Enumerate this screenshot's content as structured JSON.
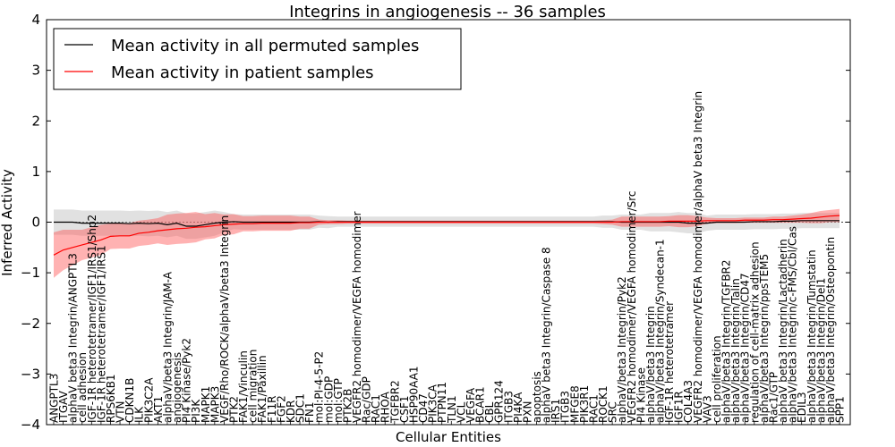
{
  "chart_data": {
    "type": "line",
    "title": "Integrins in angiogenesis -- 36 samples",
    "xlabel": "Cellular Entities",
    "ylabel": "Inferred Activity",
    "ylim": [
      -4,
      4
    ],
    "yticks": [
      "4",
      "3",
      "2",
      "1",
      "0",
      "−1",
      "−2",
      "−3",
      "−4"
    ],
    "ytick_values": [
      4,
      3,
      2,
      1,
      0,
      -1,
      -2,
      -3,
      -4
    ],
    "legend_position": "top-left",
    "categories": [
      "ANGPTL3",
      "ITGAV",
      "alphaV beta3 Integrin/ANGPTL3",
      "cell adhesion",
      "IGF-1R heterotetramer/IGF1/IRS1/Shp2",
      "IGF-1R heterotetramer/IGF1/IRS1",
      "RPS6KB1",
      "VTN",
      "CDKN1B",
      "ILK",
      "PIK3C2A",
      "AKT1",
      "alphaV/beta3 Integrin/JAM-A",
      "angiogenesis",
      "PI4 Kinase/Pyk2",
      "PI3K",
      "MAPK1",
      "MAPK3",
      "VEGF/Rho/ROCK/alphaV/beta3 Integrin",
      "PTK2",
      "FAK1/Vinculin",
      "cell migration",
      "FAK1/Paxillin",
      "F11R",
      "FGF2",
      "KDR",
      "SDC1",
      "FN1",
      "mol:PI-4-5-P2",
      "mol:GDP",
      "mol:GTP",
      "PTK2B",
      "VEGFR2 homodimer/VEGFA homodimer",
      "Rac/GDP",
      "RAC1",
      "RHOA",
      "TGFBR2",
      "CSF1",
      "HSP90AA1",
      "CD47",
      "PIK3CA",
      "PTPN11",
      "TLN1",
      "VCL",
      "VEGFA",
      "BCAR1",
      "CBL",
      "GPR124",
      "ITGB3",
      "PI4KA",
      "PXN",
      "apoptosis",
      "alphaV beta3 Integrin/Caspase 8",
      "IRS1",
      "ITGB3",
      "MFGE8",
      "PIK3R1",
      "RAC1",
      "ROCK1",
      "SRC",
      "alphaV/beta3 Integrin/Pyk2",
      "VEGFR2 homodimer/VEGFA homodimer/Src",
      "PI4 Kinase",
      "alphaV/beta3 Integrin",
      "alphaV/beta3 Integrin/Syndecan-1",
      "IGF-1R heterotetramer",
      "IGF1R",
      "COL4A3",
      "VEGFR2 homodimer/VEGFA homodimer/alphaV beta3 Integrin",
      "VAV3",
      "cell proliferation",
      "alphaV/beta3 Integrin/TGFBR2",
      "alphaV/beta3 Integrin/Talin",
      "alphaV/beta3 Integrin/CD47",
      "regulation of cell-matrix adhesion",
      "alphaV/beta3 Integrin/ppsTEM5",
      "Rac1/GTP",
      "alphaV beta3 Integrin/Lactadherin",
      "alphaV/beta3 Integrin/c-FMS/Cbl/Cas",
      "EDIL3",
      "alphaV/beta3 Integrin/Tumstatin",
      "alphaV/beta3 Integrin/Del1",
      "alphaV/beta3 Integrin/Osteopontin",
      "SPP1"
    ],
    "series": [
      {
        "name": "Mean activity in all permuted samples",
        "color": "#000000",
        "values": [
          0.0,
          0.0,
          0.0,
          -0.02,
          -0.02,
          -0.02,
          -0.02,
          -0.02,
          -0.03,
          -0.02,
          -0.03,
          -0.02,
          -0.05,
          -0.02,
          -0.08,
          -0.08,
          -0.05,
          -0.02,
          0.0,
          0.01,
          0.0,
          0.0,
          0.0,
          0.0,
          0.0,
          0.0,
          0.0,
          0.0,
          0.01,
          0.0,
          0.01,
          0.01,
          0.01,
          0.01,
          0.01,
          0.01,
          0.01,
          0.01,
          0.01,
          0.01,
          0.01,
          0.01,
          0.01,
          0.01,
          0.01,
          0.01,
          0.01,
          0.01,
          0.01,
          0.01,
          0.01,
          0.01,
          0.01,
          0.01,
          0.01,
          0.01,
          0.01,
          0.01,
          0.01,
          0.01,
          0.0,
          0.0,
          0.0,
          0.0,
          0.0,
          0.0,
          0.0,
          -0.02,
          -0.02,
          -0.02,
          0.0,
          0.0,
          0.0,
          0.0,
          0.01,
          0.01,
          0.01,
          0.02,
          0.02,
          0.03,
          0.03,
          0.03,
          0.03,
          0.03
        ],
        "band": [
          0.25,
          0.25,
          0.25,
          0.25,
          0.25,
          0.25,
          0.25,
          0.25,
          0.25,
          0.25,
          0.25,
          0.25,
          0.25,
          0.25,
          0.25,
          0.25,
          0.25,
          0.25,
          0.2,
          0.15,
          0.15,
          0.15,
          0.15,
          0.15,
          0.15,
          0.15,
          0.15,
          0.15,
          0.12,
          0.12,
          0.1,
          0.1,
          0.1,
          0.1,
          0.1,
          0.1,
          0.1,
          0.1,
          0.1,
          0.1,
          0.1,
          0.1,
          0.1,
          0.1,
          0.1,
          0.1,
          0.1,
          0.1,
          0.1,
          0.1,
          0.1,
          0.1,
          0.1,
          0.1,
          0.1,
          0.1,
          0.1,
          0.1,
          0.12,
          0.12,
          0.15,
          0.15,
          0.15,
          0.18,
          0.18,
          0.18,
          0.2,
          0.2,
          0.2,
          0.15,
          0.15,
          0.15,
          0.15,
          0.15,
          0.15,
          0.15,
          0.15,
          0.15,
          0.15,
          0.15,
          0.15,
          0.15,
          0.15,
          0.15
        ]
      },
      {
        "name": "Mean activity in patient samples",
        "color": "#ff0000",
        "values": [
          -0.65,
          -0.55,
          -0.5,
          -0.45,
          -0.4,
          -0.35,
          -0.28,
          -0.27,
          -0.27,
          -0.22,
          -0.2,
          -0.17,
          -0.15,
          -0.13,
          -0.12,
          -0.1,
          -0.09,
          -0.07,
          -0.05,
          -0.04,
          -0.03,
          -0.03,
          -0.02,
          -0.02,
          -0.02,
          -0.02,
          -0.01,
          -0.01,
          0.0,
          0.0,
          0.0,
          0.0,
          0.0,
          0.0,
          0.0,
          0.0,
          0.0,
          0.0,
          0.0,
          0.0,
          0.0,
          0.0,
          0.0,
          0.0,
          0.0,
          0.0,
          0.0,
          0.0,
          0.0,
          0.0,
          0.0,
          0.0,
          0.0,
          0.0,
          0.0,
          0.0,
          0.0,
          0.0,
          0.0,
          0.0,
          0.01,
          0.01,
          0.01,
          0.01,
          0.01,
          0.02,
          0.02,
          0.02,
          0.02,
          0.03,
          0.03,
          0.03,
          0.03,
          0.04,
          0.04,
          0.04,
          0.05,
          0.05,
          0.06,
          0.07,
          0.08,
          0.1,
          0.12,
          0.13
        ],
        "band": [
          0.45,
          0.4,
          0.35,
          0.3,
          0.3,
          0.3,
          0.25,
          0.25,
          0.25,
          0.25,
          0.25,
          0.25,
          0.3,
          0.3,
          0.3,
          0.3,
          0.25,
          0.25,
          0.2,
          0.2,
          0.15,
          0.15,
          0.15,
          0.15,
          0.15,
          0.15,
          0.12,
          0.12,
          0.05,
          0.04,
          0.04,
          0.03,
          0.03,
          0.03,
          0.03,
          0.03,
          0.03,
          0.03,
          0.03,
          0.03,
          0.03,
          0.03,
          0.03,
          0.03,
          0.03,
          0.03,
          0.03,
          0.03,
          0.03,
          0.03,
          0.03,
          0.03,
          0.03,
          0.03,
          0.03,
          0.03,
          0.03,
          0.03,
          0.04,
          0.05,
          0.1,
          0.1,
          0.1,
          0.1,
          0.1,
          0.1,
          0.12,
          0.12,
          0.1,
          0.06,
          0.05,
          0.05,
          0.05,
          0.05,
          0.05,
          0.05,
          0.06,
          0.06,
          0.07,
          0.08,
          0.1,
          0.12,
          0.12,
          0.13
        ]
      }
    ]
  }
}
